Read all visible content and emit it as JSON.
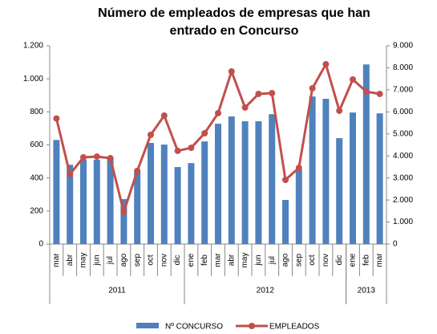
{
  "chart_data": {
    "type": "bar-line",
    "title": "Número de empleados de empresas que han entrado en Concurso",
    "categories": [
      "mar",
      "abr",
      "may",
      "jun",
      "jul",
      "ago",
      "sep",
      "oct",
      "nov",
      "dic",
      "ene",
      "feb",
      "mar",
      "abr",
      "may",
      "jun",
      "jul",
      "ago",
      "sep",
      "oct",
      "nov",
      "dic",
      "ene",
      "feb",
      "mar"
    ],
    "year_groups": [
      {
        "label": "2011",
        "count": 10
      },
      {
        "label": "2012",
        "count": 12
      },
      {
        "label": "2013",
        "count": 3
      }
    ],
    "series": [
      {
        "name": "Nº CONCURSO",
        "type": "bar",
        "color": "#4f81bd",
        "axis": "y",
        "values": [
          630,
          480,
          510,
          510,
          520,
          272,
          440,
          612,
          602,
          466,
          490,
          621,
          728,
          772,
          743,
          743,
          786,
          267,
          451,
          893,
          879,
          641,
          796,
          1087,
          791
        ]
      },
      {
        "name": "EMPLEADOS",
        "type": "line",
        "color": "#c0504d",
        "axis": "y2",
        "values": [
          5700,
          3170,
          3935,
          3970,
          3900,
          1460,
          3320,
          4960,
          5830,
          4230,
          4370,
          5030,
          5940,
          7835,
          6195,
          6815,
          6850,
          2915,
          3460,
          7070,
          8160,
          6050,
          7470,
          6920,
          6815
        ]
      }
    ],
    "ylim": [
      0,
      1200
    ],
    "yticks": [
      0,
      200,
      400,
      600,
      800,
      {
        "value": 1000,
        "label": "1.000"
      },
      {
        "value": 1200,
        "label": "1.200"
      }
    ],
    "y2lim": [
      0,
      9000
    ],
    "y2ticks": [
      0,
      {
        "value": 1000,
        "label": "1.000"
      },
      {
        "value": 2000,
        "label": "2.000"
      },
      {
        "value": 3000,
        "label": "3.000"
      },
      {
        "value": 4000,
        "label": "4.000"
      },
      {
        "value": 5000,
        "label": "5.000"
      },
      {
        "value": 6000,
        "label": "6.000"
      },
      {
        "value": 7000,
        "label": "7.000"
      },
      {
        "value": 8000,
        "label": "8.000"
      },
      {
        "value": 9000,
        "label": "9.000"
      }
    ],
    "grid": false,
    "legend": "bottom"
  }
}
